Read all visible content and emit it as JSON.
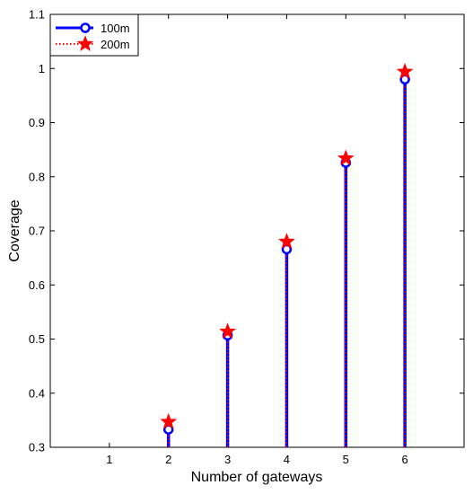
{
  "chart_data": {
    "type": "stem",
    "title": "",
    "xlabel": "Number of gateways",
    "ylabel": "Coverage",
    "xlim": [
      0,
      7
    ],
    "ylim": [
      0.3,
      1.1
    ],
    "xticks": [
      "1",
      "2",
      "3",
      "4",
      "5",
      "6"
    ],
    "yticks": [
      "0.3",
      "0.4",
      "0.5",
      "0.6",
      "0.7",
      "0.8",
      "0.9",
      "1",
      "1.1"
    ],
    "grid": false,
    "legend_position": "top-left",
    "baseline": 0.3,
    "series": [
      {
        "name": "100m",
        "color": "#0000ff",
        "marker": "circle",
        "line_style": "solid",
        "x": [
          1,
          2,
          3,
          4,
          5,
          6
        ],
        "values": [
          0.3,
          0.333,
          0.507,
          0.666,
          0.826,
          0.98
        ]
      },
      {
        "name": "200m",
        "color": "#ff0000",
        "marker": "star",
        "line_style": "dotted",
        "x": [
          1,
          2,
          3,
          4,
          5,
          6
        ],
        "values": [
          0.3,
          0.347,
          0.514,
          0.68,
          0.834,
          0.994
        ]
      }
    ]
  }
}
